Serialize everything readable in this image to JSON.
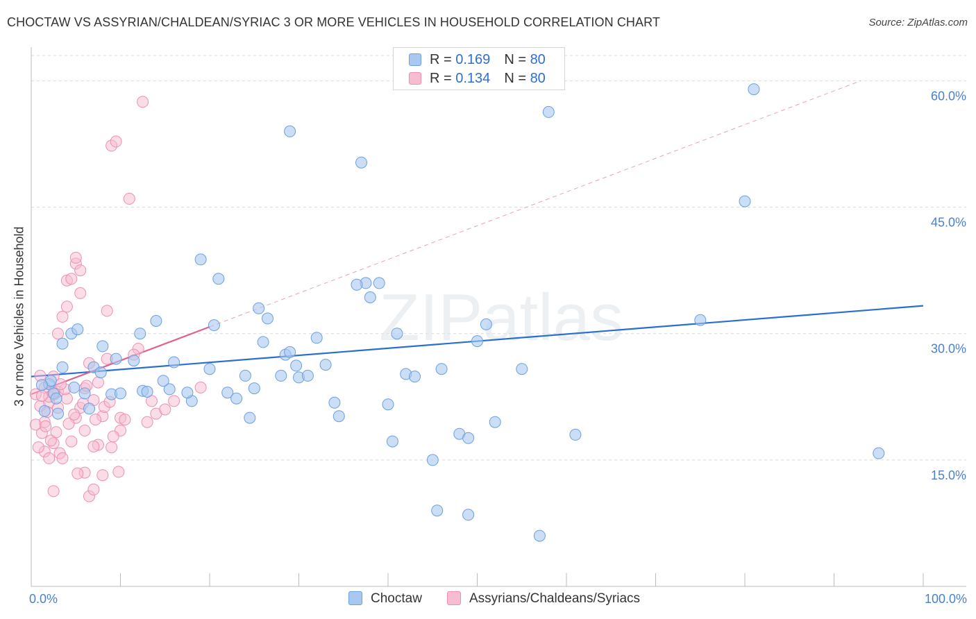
{
  "title": "CHOCTAW VS ASSYRIAN/CHALDEAN/SYRIAC 3 OR MORE VEHICLES IN HOUSEHOLD CORRELATION CHART",
  "source": "Source: ZipAtlas.com",
  "watermark": "ZIPatlas",
  "colors": {
    "blue_fill": "#a9c8f0",
    "blue_stroke": "#6a9fe0",
    "blue_line": "#2a6fd0",
    "pink_fill": "#f7bcd0",
    "pink_stroke": "#ec8fb0",
    "pink_line": "#e0608e",
    "grid": "#d9d9d9",
    "tick_label": "#4a80d0"
  },
  "legend": {
    "rows": [
      {
        "r_label": "R = ",
        "r_value": "0.169",
        "n_label": "N = ",
        "n_value": "80"
      },
      {
        "r_label": "R = ",
        "r_value": "0.134",
        "n_label": "N = ",
        "n_value": "80"
      }
    ]
  },
  "bottom_legend": {
    "series1": "Choctaw",
    "series2": "Assyrians/Chaldeans/Syriacs"
  },
  "chart_data": {
    "type": "scatter",
    "title": "CHOCTAW VS ASSYRIAN/CHALDEAN/SYRIAC 3 OR MORE VEHICLES IN HOUSEHOLD CORRELATION CHART",
    "xlabel": "",
    "ylabel": "3 or more Vehicles in Household",
    "xlim": [
      0,
      100
    ],
    "ylim": [
      0,
      63
    ],
    "x_tick_labels": [
      {
        "value": 0,
        "label": "0.0%"
      },
      {
        "value": 100,
        "label": "100.0%"
      }
    ],
    "y_ticks": [
      {
        "value": 15,
        "label": "15.0%"
      },
      {
        "value": 30,
        "label": "30.0%"
      },
      {
        "value": 45,
        "label": "45.0%"
      },
      {
        "value": 60,
        "label": "60.0%"
      }
    ],
    "x_minor_ticks": [
      0,
      10,
      20,
      30,
      40,
      50,
      60,
      70,
      80,
      90,
      100
    ],
    "series": [
      {
        "name": "Choctaw",
        "color": "blue",
        "points": [
          [
            1.5,
            20.8
          ],
          [
            2,
            24
          ],
          [
            2.2,
            24.4
          ],
          [
            3.5,
            26
          ],
          [
            4.5,
            30
          ],
          [
            5.2,
            30.5
          ],
          [
            3.5,
            28.8
          ],
          [
            6,
            22.9
          ],
          [
            7,
            26
          ],
          [
            8,
            28.5
          ],
          [
            9.5,
            27
          ],
          [
            12.2,
            30
          ],
          [
            14,
            31.5
          ],
          [
            15.5,
            23.4
          ],
          [
            16,
            26.6
          ],
          [
            18,
            22
          ],
          [
            17.5,
            23
          ],
          [
            19,
            38.8
          ],
          [
            20,
            25.8
          ],
          [
            20.5,
            31
          ],
          [
            21,
            36.5
          ],
          [
            22,
            23
          ],
          [
            23,
            22.3
          ],
          [
            24,
            25
          ],
          [
            24.5,
            20
          ],
          [
            25.5,
            33
          ],
          [
            26,
            29
          ],
          [
            26.5,
            31.8
          ],
          [
            28,
            25
          ],
          [
            28.5,
            27.5
          ],
          [
            29,
            27.8
          ],
          [
            29.7,
            26.2
          ],
          [
            30,
            24.8
          ],
          [
            31,
            25
          ],
          [
            32,
            29.5
          ],
          [
            34,
            21.8
          ],
          [
            34.5,
            20.2
          ],
          [
            37,
            50.3
          ],
          [
            37.5,
            36
          ],
          [
            38,
            34.3
          ],
          [
            39,
            36
          ],
          [
            40,
            21.6
          ],
          [
            40.5,
            17.2
          ],
          [
            41,
            30
          ],
          [
            42,
            25.2
          ],
          [
            43,
            24.9
          ],
          [
            45,
            15
          ],
          [
            45.5,
            9
          ],
          [
            46,
            25.8
          ],
          [
            48,
            18.1
          ],
          [
            49,
            17.6
          ],
          [
            49,
            8.5
          ],
          [
            50,
            29.1
          ],
          [
            51,
            31.1
          ],
          [
            52,
            19.5
          ],
          [
            55,
            25.8
          ],
          [
            57,
            6
          ],
          [
            58,
            56.3
          ],
          [
            61,
            18
          ],
          [
            75,
            31.6
          ],
          [
            80,
            45.7
          ],
          [
            81,
            59
          ],
          [
            95,
            15.8
          ],
          [
            2.5,
            22.9
          ],
          [
            29,
            54
          ],
          [
            9,
            22.8
          ],
          [
            6.5,
            21.1
          ],
          [
            10,
            22.9
          ],
          [
            12.5,
            23.2
          ],
          [
            3,
            20.5
          ],
          [
            7.8,
            25.4
          ],
          [
            11.5,
            26.8
          ],
          [
            13,
            23.1
          ],
          [
            14.8,
            24.4
          ],
          [
            4.8,
            23.6
          ],
          [
            36.5,
            35.8
          ],
          [
            25,
            23.5
          ],
          [
            33,
            26.3
          ],
          [
            1.2,
            23.9
          ],
          [
            2.8,
            22.3
          ]
        ]
      },
      {
        "name": "Assyrians/Chaldeans/Syriacs",
        "color": "pink",
        "points": [
          [
            0.5,
            22.8
          ],
          [
            1,
            25
          ],
          [
            1,
            21.4
          ],
          [
            1.5,
            19.5
          ],
          [
            1.5,
            16
          ],
          [
            2,
            15.2
          ],
          [
            2,
            21.8
          ],
          [
            2.5,
            11.3
          ],
          [
            2.5,
            17
          ],
          [
            3,
            21.2
          ],
          [
            3,
            30
          ],
          [
            3.5,
            32
          ],
          [
            4,
            33.2
          ],
          [
            4,
            36.3
          ],
          [
            4.5,
            36.5
          ],
          [
            5,
            38.3
          ],
          [
            5,
            39
          ],
          [
            5.5,
            37.5
          ],
          [
            5.5,
            34.8
          ],
          [
            6,
            23.5
          ],
          [
            6,
            13.5
          ],
          [
            6.5,
            10.7
          ],
          [
            7,
            22.1
          ],
          [
            7,
            11.5
          ],
          [
            7.5,
            16.8
          ],
          [
            8,
            13.2
          ],
          [
            8,
            20.2
          ],
          [
            8.5,
            27
          ],
          [
            8.5,
            32.7
          ],
          [
            9,
            16.5
          ],
          [
            9,
            52.3
          ],
          [
            9.5,
            52.8
          ],
          [
            10,
            20
          ],
          [
            10,
            18.5
          ],
          [
            11,
            46
          ],
          [
            12,
            28.2
          ],
          [
            12.5,
            57.5
          ],
          [
            13,
            19.5
          ],
          [
            13.5,
            22
          ],
          [
            14,
            20.5
          ],
          [
            15,
            21
          ],
          [
            16,
            22
          ],
          [
            2,
            22.5
          ],
          [
            3,
            23.1
          ],
          [
            2.5,
            24.9
          ],
          [
            4,
            22.3
          ],
          [
            5,
            20
          ],
          [
            6,
            18.5
          ],
          [
            7,
            16.6
          ],
          [
            1.2,
            18.2
          ],
          [
            3.2,
            15.8
          ],
          [
            4.2,
            19.3
          ],
          [
            5.5,
            21.2
          ],
          [
            6.5,
            26.5
          ],
          [
            7.5,
            24.2
          ],
          [
            9.2,
            17.8
          ],
          [
            10.5,
            19.8
          ],
          [
            11.5,
            27.5
          ],
          [
            1.8,
            20.7
          ],
          [
            2.2,
            17.3
          ],
          [
            0.8,
            16.5
          ],
          [
            1.5,
            23.6
          ],
          [
            2.8,
            18.3
          ],
          [
            3.8,
            23.4
          ],
          [
            4.5,
            17.2
          ],
          [
            5.2,
            13.4
          ],
          [
            6.2,
            23.8
          ],
          [
            8.2,
            21.3
          ],
          [
            9.8,
            13.6
          ],
          [
            0.5,
            19.2
          ],
          [
            3.5,
            15.2
          ],
          [
            4.8,
            20.4
          ],
          [
            1.2,
            22.6
          ],
          [
            2.6,
            22.8
          ],
          [
            3.3,
            24
          ],
          [
            7.2,
            19.8
          ],
          [
            8.8,
            21.9
          ],
          [
            1.6,
            19
          ],
          [
            5.8,
            21.7
          ],
          [
            19,
            23.6
          ]
        ]
      }
    ],
    "trend_lines": [
      {
        "series": "Choctaw",
        "x": [
          0,
          100
        ],
        "y": [
          24.9,
          33.3
        ]
      },
      {
        "series": "Assyrians/Chaldeans/Syriacs",
        "x": [
          0,
          20
        ],
        "y": [
          22.8,
          30.8
        ],
        "extended_dashed": {
          "x": [
            0,
            93
          ],
          "y": [
            22.8,
            60.0
          ]
        }
      }
    ]
  }
}
